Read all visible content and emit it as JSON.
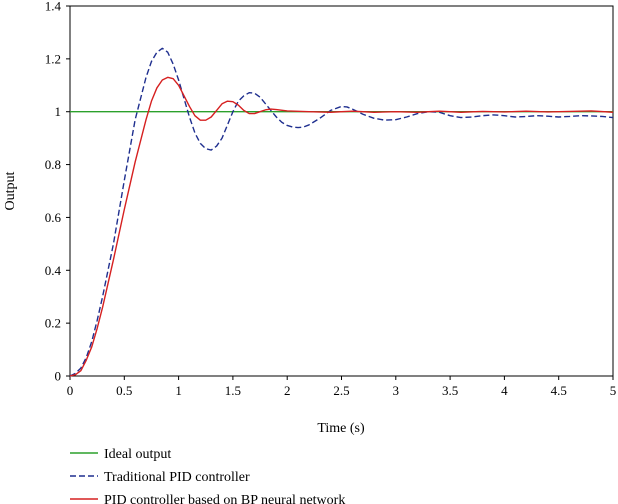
{
  "chart_data": {
    "type": "line",
    "xlabel": "Time (s)",
    "ylabel": "Output",
    "xlim": [
      0,
      5
    ],
    "ylim": [
      0,
      1.4
    ],
    "xticks": [
      0,
      0.5,
      1,
      1.5,
      2,
      2.5,
      3,
      3.5,
      4,
      4.5,
      5
    ],
    "xtick_labels": [
      "0",
      "0.5",
      "1",
      "1.5",
      "2",
      "2.5",
      "3",
      "3.5",
      "4",
      "4.5",
      "5"
    ],
    "yticks": [
      0,
      0.2,
      0.4,
      0.6,
      0.8,
      1,
      1.2,
      1.4
    ],
    "ytick_labels": [
      "0",
      "0.2",
      "0.4",
      "0.6",
      "0.8",
      "1",
      "1.2",
      "1.4"
    ],
    "grid": false,
    "legend_position": "bottom",
    "series": [
      {
        "name": "Ideal output",
        "color": "#2ca02c",
        "style": "solid",
        "points": [
          [
            0,
            1
          ],
          [
            5,
            1
          ]
        ]
      },
      {
        "name": "Traditional PID controller",
        "color": "#1f2f8f",
        "style": "dashed",
        "points": [
          [
            0,
            0
          ],
          [
            0.05,
            0.01
          ],
          [
            0.1,
            0.03
          ],
          [
            0.15,
            0.07
          ],
          [
            0.2,
            0.13
          ],
          [
            0.25,
            0.21
          ],
          [
            0.3,
            0.3
          ],
          [
            0.4,
            0.5
          ],
          [
            0.5,
            0.74
          ],
          [
            0.6,
            0.97
          ],
          [
            0.7,
            1.13
          ],
          [
            0.75,
            1.19
          ],
          [
            0.8,
            1.225
          ],
          [
            0.85,
            1.24
          ],
          [
            0.9,
            1.225
          ],
          [
            0.95,
            1.18
          ],
          [
            1.0,
            1.12
          ],
          [
            1.05,
            1.05
          ],
          [
            1.1,
            0.98
          ],
          [
            1.15,
            0.92
          ],
          [
            1.2,
            0.88
          ],
          [
            1.25,
            0.86
          ],
          [
            1.3,
            0.855
          ],
          [
            1.35,
            0.87
          ],
          [
            1.4,
            0.9
          ],
          [
            1.45,
            0.95
          ],
          [
            1.5,
            1.0
          ],
          [
            1.55,
            1.04
          ],
          [
            1.6,
            1.06
          ],
          [
            1.65,
            1.072
          ],
          [
            1.7,
            1.07
          ],
          [
            1.75,
            1.055
          ],
          [
            1.8,
            1.03
          ],
          [
            1.85,
            1.005
          ],
          [
            1.9,
            0.98
          ],
          [
            1.95,
            0.96
          ],
          [
            2.0,
            0.948
          ],
          [
            2.05,
            0.942
          ],
          [
            2.1,
            0.94
          ],
          [
            2.15,
            0.942
          ],
          [
            2.2,
            0.95
          ],
          [
            2.3,
            0.975
          ],
          [
            2.4,
            1.005
          ],
          [
            2.5,
            1.02
          ],
          [
            2.55,
            1.018
          ],
          [
            2.6,
            1.01
          ],
          [
            2.7,
            0.99
          ],
          [
            2.8,
            0.975
          ],
          [
            2.9,
            0.968
          ],
          [
            3.0,
            0.97
          ],
          [
            3.1,
            0.98
          ],
          [
            3.2,
            0.993
          ],
          [
            3.3,
            1.0
          ],
          [
            3.4,
            0.998
          ],
          [
            3.5,
            0.985
          ],
          [
            3.6,
            0.978
          ],
          [
            3.7,
            0.98
          ],
          [
            3.8,
            0.985
          ],
          [
            3.9,
            0.988
          ],
          [
            4.0,
            0.985
          ],
          [
            4.1,
            0.98
          ],
          [
            4.2,
            0.982
          ],
          [
            4.3,
            0.985
          ],
          [
            4.4,
            0.983
          ],
          [
            4.5,
            0.98
          ],
          [
            4.6,
            0.982
          ],
          [
            4.7,
            0.985
          ],
          [
            4.8,
            0.984
          ],
          [
            4.9,
            0.982
          ],
          [
            5.0,
            0.978
          ]
        ]
      },
      {
        "name": "PID controller based on BP neural network",
        "color": "#d62020",
        "style": "solid",
        "points": [
          [
            0,
            0
          ],
          [
            0.05,
            0.005
          ],
          [
            0.1,
            0.02
          ],
          [
            0.15,
            0.06
          ],
          [
            0.2,
            0.11
          ],
          [
            0.25,
            0.18
          ],
          [
            0.3,
            0.26
          ],
          [
            0.4,
            0.44
          ],
          [
            0.5,
            0.63
          ],
          [
            0.6,
            0.81
          ],
          [
            0.7,
            0.97
          ],
          [
            0.75,
            1.04
          ],
          [
            0.8,
            1.09
          ],
          [
            0.85,
            1.12
          ],
          [
            0.9,
            1.13
          ],
          [
            0.95,
            1.125
          ],
          [
            1.0,
            1.1
          ],
          [
            1.05,
            1.06
          ],
          [
            1.1,
            1.02
          ],
          [
            1.15,
            0.985
          ],
          [
            1.2,
            0.968
          ],
          [
            1.25,
            0.968
          ],
          [
            1.3,
            0.98
          ],
          [
            1.35,
            1.005
          ],
          [
            1.4,
            1.03
          ],
          [
            1.45,
            1.04
          ],
          [
            1.5,
            1.038
          ],
          [
            1.55,
            1.025
          ],
          [
            1.6,
            1.005
          ],
          [
            1.65,
            0.993
          ],
          [
            1.7,
            0.993
          ],
          [
            1.75,
            1.0
          ],
          [
            1.8,
            1.007
          ],
          [
            1.85,
            1.01
          ],
          [
            1.9,
            1.008
          ],
          [
            2.0,
            1.003
          ],
          [
            2.2,
            1.0
          ],
          [
            2.4,
            0.998
          ],
          [
            2.6,
            1.002
          ],
          [
            2.8,
            0.998
          ],
          [
            3.0,
            1.0
          ],
          [
            3.2,
            0.998
          ],
          [
            3.4,
            1.002
          ],
          [
            3.6,
            0.998
          ],
          [
            3.8,
            1.001
          ],
          [
            4.0,
            0.999
          ],
          [
            4.2,
            1.002
          ],
          [
            4.4,
            0.999
          ],
          [
            4.6,
            1.001
          ],
          [
            4.8,
            1.003
          ],
          [
            5.0,
            0.998
          ]
        ]
      }
    ]
  }
}
